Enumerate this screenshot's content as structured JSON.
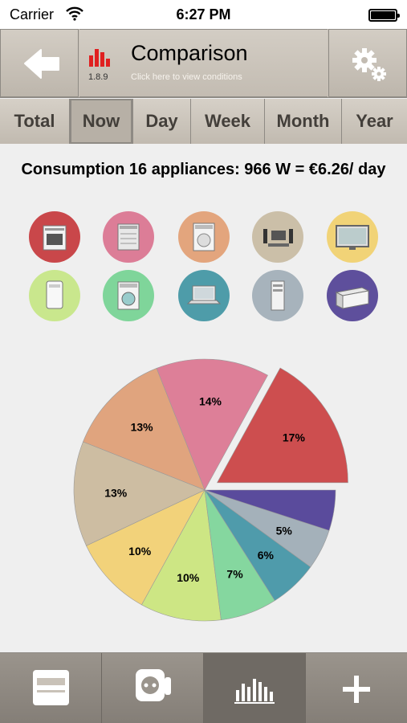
{
  "status_bar": {
    "carrier": "Carrier",
    "time": "6:27 PM"
  },
  "nav": {
    "title": "Comparison",
    "subtitle": "Click here to view conditions",
    "version": "1.8.9",
    "back_icon": "arrow-left-icon",
    "settings_icon": "gears-icon"
  },
  "tabs": [
    {
      "label": "Total"
    },
    {
      "label": "Now",
      "active": true
    },
    {
      "label": "Day"
    },
    {
      "label": "Week"
    },
    {
      "label": "Month"
    },
    {
      "label": "Year"
    }
  ],
  "summary": {
    "text": "Consumption 16 appliances: 966 W = €6.26/ day"
  },
  "appliances": [
    {
      "icon": "oven-icon",
      "color": "#c9474a"
    },
    {
      "icon": "dishwasher-icon",
      "color": "#dc7d97"
    },
    {
      "icon": "dryer-icon",
      "color": "#e3a57d"
    },
    {
      "icon": "home-cinema-icon",
      "color": "#cbbfa8"
    },
    {
      "icon": "television-icon",
      "color": "#f1d377"
    },
    {
      "icon": "water-heater-icon",
      "color": "#c9e78d"
    },
    {
      "icon": "washing-machine-icon",
      "color": "#7fd59a"
    },
    {
      "icon": "laptop-icon",
      "color": "#4e9ca9"
    },
    {
      "icon": "desktop-computer-icon",
      "color": "#a7b3bc"
    },
    {
      "icon": "freezer-icon",
      "color": "#5e4f9c"
    }
  ],
  "chart_data": {
    "type": "pie",
    "title": "",
    "slices": [
      {
        "value": 17,
        "label": "17%",
        "color": "#cd4e4f",
        "exploded": true
      },
      {
        "value": 14,
        "label": "14%",
        "color": "#dd7f98"
      },
      {
        "value": 13,
        "label": "13%",
        "color": "#e0a47e"
      },
      {
        "value": 13,
        "label": "13%",
        "color": "#cdbda2"
      },
      {
        "value": 10,
        "label": "10%",
        "color": "#f2d27a"
      },
      {
        "value": 10,
        "label": "10%",
        "color": "#cde684"
      },
      {
        "value": 7,
        "label": "7%",
        "color": "#85d79f"
      },
      {
        "value": 6,
        "label": "6%",
        "color": "#4f9bab"
      },
      {
        "value": 5,
        "label": "5%",
        "color": "#a4b1ba"
      },
      {
        "value": 5,
        "label": "",
        "color": "#5a4b9c"
      }
    ]
  },
  "bottom_bar": [
    {
      "icon": "meter-icon",
      "active": false
    },
    {
      "icon": "smart-plug-icon",
      "active": false
    },
    {
      "icon": "bar-chart-icon",
      "active": true
    },
    {
      "icon": "plus-icon",
      "active": false
    }
  ]
}
